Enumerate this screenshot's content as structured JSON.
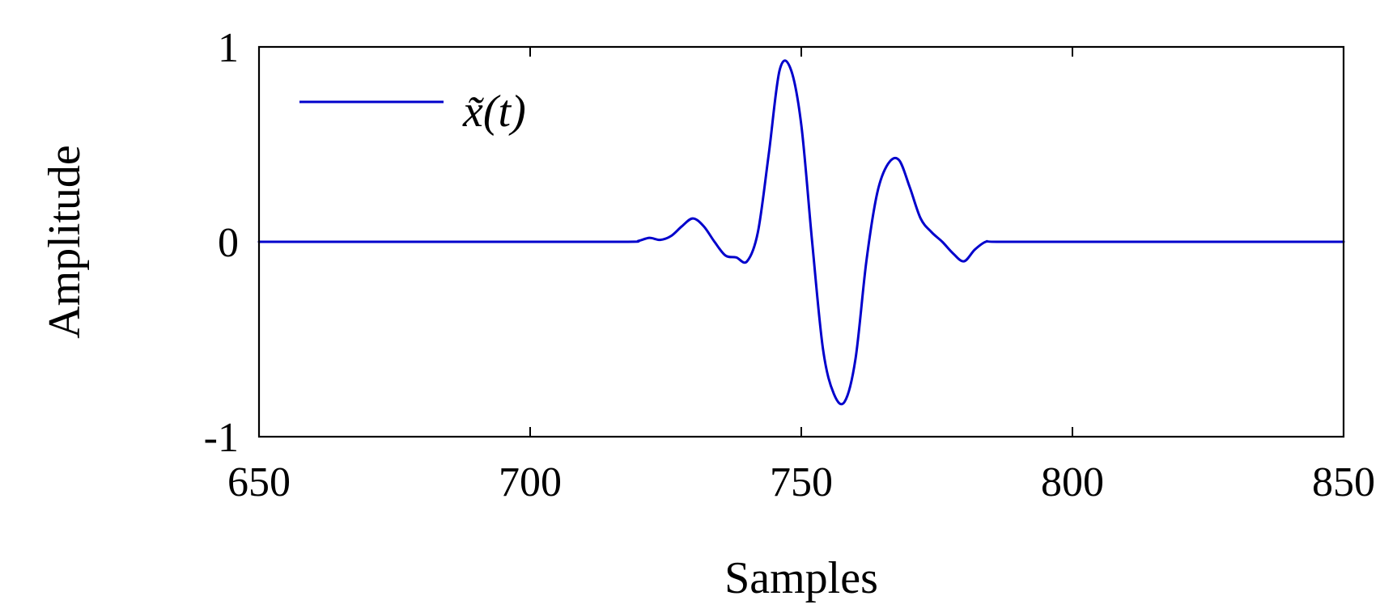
{
  "chart_data": {
    "type": "line",
    "title": "",
    "xlabel": "Samples",
    "ylabel": "Amplitude",
    "xlim": [
      650,
      850
    ],
    "ylim": [
      -1,
      1
    ],
    "xticks": [
      650,
      700,
      750,
      800,
      850
    ],
    "yticks": [
      -1,
      0,
      1
    ],
    "xtick_labels": [
      "650",
      "700",
      "750",
      "800",
      "850"
    ],
    "ytick_labels": [
      "-1",
      "0",
      "1"
    ],
    "grid": false,
    "legend_position": "top-left",
    "series": [
      {
        "name": "x̃(t)",
        "color": "#0000cc",
        "x": [
          650,
          700,
          718,
          720,
          722,
          724,
          726,
          728,
          730,
          732,
          734,
          736,
          738,
          740,
          742,
          744,
          746,
          748,
          750,
          752,
          754,
          756,
          758,
          760,
          762,
          764,
          766,
          768,
          770,
          772,
          774,
          776,
          778,
          780,
          782,
          784,
          786,
          800,
          850
        ],
        "y": [
          0,
          0,
          0,
          0.005,
          0.02,
          0.01,
          0.03,
          0.08,
          0.12,
          0.08,
          0.0,
          -0.07,
          -0.08,
          -0.1,
          0.05,
          0.45,
          0.88,
          0.89,
          0.6,
          0.0,
          -0.55,
          -0.78,
          -0.82,
          -0.6,
          -0.1,
          0.25,
          0.4,
          0.42,
          0.28,
          0.12,
          0.05,
          0.0,
          -0.06,
          -0.1,
          -0.04,
          0.0,
          0.0,
          0.0,
          0.0
        ]
      }
    ]
  }
}
